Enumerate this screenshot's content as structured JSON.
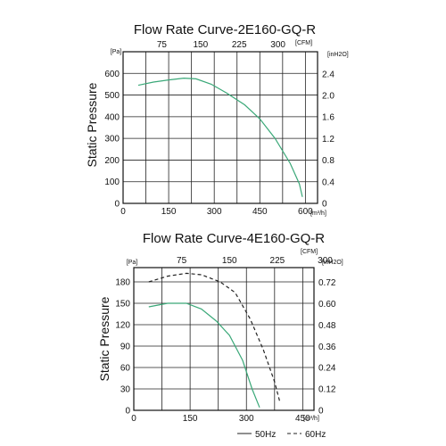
{
  "chart_data": [
    {
      "type": "line",
      "title": "Flow Rate Curve-2E160-GQ-R",
      "ylabel": "Static Pressure",
      "left_unit": "[Pa]",
      "right_unit": "[inH2O]",
      "bottom_unit": "[m³/h]",
      "top_unit": "[CFM]",
      "xlim": [
        0,
        640
      ],
      "ylim": [
        0,
        700
      ],
      "x_ticks": [
        0,
        150,
        300,
        450,
        600
      ],
      "y_ticks": [
        0,
        100,
        200,
        300,
        400,
        500,
        600
      ],
      "top_ticks": [
        "75",
        "150",
        "225",
        "300"
      ],
      "top_tick_values": [
        75,
        150,
        225,
        300
      ],
      "right_ticks": [
        "0",
        "0.4",
        "0.8",
        "1.2",
        "1.6",
        "2.0",
        "2.4"
      ],
      "right_tick_values": [
        0,
        0.4,
        0.8,
        1.2,
        1.6,
        2.0,
        2.4
      ],
      "grid": true,
      "series": [
        {
          "color": "#3aa878",
          "dash": false,
          "x": [
            50,
            100,
            150,
            200,
            240,
            290,
            340,
            400,
            450,
            500,
            550,
            580,
            590
          ],
          "y": [
            545,
            560,
            570,
            578,
            575,
            550,
            510,
            455,
            390,
            300,
            185,
            90,
            30
          ]
        }
      ]
    },
    {
      "type": "line",
      "title": "Flow Rate Curve-4E160-GQ-R",
      "ylabel": "Static Pressure",
      "left_unit": "[Pa]",
      "right_unit": "[inH2O]",
      "bottom_unit": "[m³/h]",
      "top_unit": "[CFM]",
      "xlim": [
        0,
        480
      ],
      "ylim": [
        0,
        200
      ],
      "x_ticks": [
        0,
        150,
        300,
        450
      ],
      "y_ticks": [
        0,
        30,
        60,
        90,
        120,
        150,
        180
      ],
      "top_ticks": [
        "75",
        "150",
        "225",
        "300"
      ],
      "top_tick_values": [
        75,
        150,
        225,
        300
      ],
      "right_ticks": [
        "0",
        "0.12",
        "0.24",
        "0.36",
        "0.48",
        "0.60",
        "0.72"
      ],
      "right_tick_values": [
        0,
        0.12,
        0.24,
        0.36,
        0.48,
        0.6,
        0.72
      ],
      "grid": true,
      "legend": [
        "50Hz",
        "60Hz"
      ],
      "legend_placement": "bottom-right",
      "series": [
        {
          "name": "50Hz",
          "color": "#3aa878",
          "dash": false,
          "x": [
            40,
            90,
            140,
            180,
            220,
            255,
            290,
            315,
            335
          ],
          "y": [
            145,
            150,
            150,
            142,
            125,
            105,
            70,
            30,
            4
          ]
        },
        {
          "name": "60Hz",
          "color": "#222222",
          "dash": true,
          "x": [
            40,
            90,
            140,
            180,
            230,
            270,
            310,
            345,
            375,
            390
          ],
          "y": [
            180,
            188,
            192,
            190,
            180,
            165,
            128,
            85,
            40,
            10
          ]
        }
      ]
    }
  ]
}
